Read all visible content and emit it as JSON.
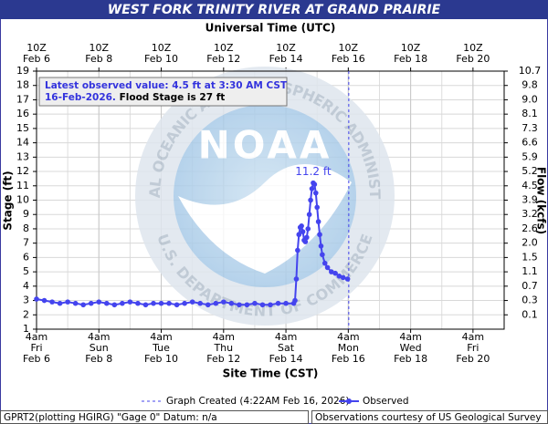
{
  "chart_data": {
    "type": "line",
    "title": "WEST FORK TRINITY RIVER AT GRAND PRAIRIE",
    "x_label": "Site Time (CST)",
    "x2_label": "Universal Time (UTC)",
    "y_label": "Stage (ft)",
    "y2_label": "Flow (kcfs)",
    "xlim": [
      "2026-02-06T04:00",
      "2026-02-21T04:00"
    ],
    "xticks": [
      {
        "value": "2026-02-06T04:00",
        "label": [
          "4am",
          "Fri",
          "Feb 6"
        ]
      },
      {
        "value": "2026-02-08T04:00",
        "label": [
          "4am",
          "Sun",
          "Feb 8"
        ]
      },
      {
        "value": "2026-02-10T04:00",
        "label": [
          "4am",
          "Tue",
          "Feb 10"
        ]
      },
      {
        "value": "2026-02-12T04:00",
        "label": [
          "4am",
          "Thu",
          "Feb 12"
        ]
      },
      {
        "value": "2026-02-14T04:00",
        "label": [
          "4am",
          "Sat",
          "Feb 14"
        ]
      },
      {
        "value": "2026-02-16T04:00",
        "label": [
          "4am",
          "Mon",
          "Feb 16"
        ]
      },
      {
        "value": "2026-02-18T04:00",
        "label": [
          "4am",
          "Wed",
          "Feb 18"
        ]
      },
      {
        "value": "2026-02-20T04:00",
        "label": [
          "4am",
          "Fri",
          "Feb 20"
        ]
      }
    ],
    "x2ticks": [
      {
        "value": "2026-02-06T04:00",
        "label": [
          "10Z",
          "Feb 6"
        ]
      },
      {
        "value": "2026-02-08T04:00",
        "label": [
          "10Z",
          "Feb 8"
        ]
      },
      {
        "value": "2026-02-10T04:00",
        "label": [
          "10Z",
          "Feb 10"
        ]
      },
      {
        "value": "2026-02-12T04:00",
        "label": [
          "10Z",
          "Feb 12"
        ]
      },
      {
        "value": "2026-02-14T04:00",
        "label": [
          "10Z",
          "Feb 14"
        ]
      },
      {
        "value": "2026-02-16T04:00",
        "label": [
          "10Z",
          "Feb 16"
        ]
      },
      {
        "value": "2026-02-18T04:00",
        "label": [
          "10Z",
          "Feb 18"
        ]
      },
      {
        "value": "2026-02-20T04:00",
        "label": [
          "10Z",
          "Feb 20"
        ]
      }
    ],
    "ylim": [
      1,
      19
    ],
    "yticks": [
      1,
      2,
      3,
      4,
      5,
      6,
      7,
      8,
      9,
      10,
      11,
      12,
      13,
      14,
      15,
      16,
      17,
      18,
      19
    ],
    "y2ticks": [
      0.1,
      0.3,
      0.7,
      1.1,
      1.5,
      {
        "value": 2,
        "label": "2.0"
      },
      2.6,
      3.2,
      3.9,
      4.5,
      5.2,
      5.9,
      6.6,
      7.3,
      8.1,
      {
        "value": 9,
        "label": "9.0"
      },
      9.8,
      10.7
    ],
    "grid": true,
    "series": [
      {
        "name": "Observed",
        "color": "#4444ee",
        "x": [
          "2026-02-06T04:00",
          "2026-02-06T10:00",
          "2026-02-06T16:00",
          "2026-02-06T22:00",
          "2026-02-07T04:00",
          "2026-02-07T10:00",
          "2026-02-07T16:00",
          "2026-02-07T22:00",
          "2026-02-08T04:00",
          "2026-02-08T10:00",
          "2026-02-08T16:00",
          "2026-02-08T22:00",
          "2026-02-09T04:00",
          "2026-02-09T10:00",
          "2026-02-09T16:00",
          "2026-02-09T22:00",
          "2026-02-10T04:00",
          "2026-02-10T10:00",
          "2026-02-10T16:00",
          "2026-02-10T22:00",
          "2026-02-11T04:00",
          "2026-02-11T10:00",
          "2026-02-11T16:00",
          "2026-02-11T22:00",
          "2026-02-12T04:00",
          "2026-02-12T10:00",
          "2026-02-12T16:00",
          "2026-02-12T22:00",
          "2026-02-13T04:00",
          "2026-02-13T10:00",
          "2026-02-13T16:00",
          "2026-02-13T22:00",
          "2026-02-14T04:00",
          "2026-02-14T10:00",
          "2026-02-14T11:00",
          "2026-02-14T12:00",
          "2026-02-14T13:00",
          "2026-02-14T14:00",
          "2026-02-14T15:00",
          "2026-02-14T16:00",
          "2026-02-14T17:00",
          "2026-02-14T18:00",
          "2026-02-14T19:00",
          "2026-02-14T20:00",
          "2026-02-14T21:00",
          "2026-02-14T22:00",
          "2026-02-14T23:00",
          "2026-02-15T00:00",
          "2026-02-15T01:00",
          "2026-02-15T02:00",
          "2026-02-15T03:00",
          "2026-02-15T04:00",
          "2026-02-15T05:00",
          "2026-02-15T06:00",
          "2026-02-15T07:00",
          "2026-02-15T08:00",
          "2026-02-15T10:00",
          "2026-02-15T12:00",
          "2026-02-15T15:00",
          "2026-02-15T18:00",
          "2026-02-15T21:00",
          "2026-02-16T00:00",
          "2026-02-16T03:30"
        ],
        "values": [
          3.1,
          3.0,
          2.9,
          2.8,
          2.9,
          2.8,
          2.7,
          2.8,
          2.9,
          2.8,
          2.7,
          2.8,
          2.9,
          2.8,
          2.7,
          2.8,
          2.8,
          2.8,
          2.7,
          2.8,
          2.9,
          2.8,
          2.7,
          2.8,
          2.9,
          2.8,
          2.7,
          2.7,
          2.8,
          2.7,
          2.7,
          2.8,
          2.8,
          2.8,
          3.0,
          4.5,
          6.5,
          7.6,
          8.1,
          8.2,
          7.8,
          7.2,
          7.1,
          7.4,
          8.0,
          9.0,
          10.0,
          10.8,
          11.2,
          11.1,
          10.5,
          9.5,
          8.5,
          7.6,
          6.8,
          6.2,
          5.6,
          5.3,
          5.0,
          4.9,
          4.7,
          4.6,
          4.5
        ]
      }
    ],
    "annotations": [
      {
        "text": "11.2 ft",
        "x": "2026-02-15T01:00",
        "y": 11.2
      }
    ],
    "created": {
      "label": "Graph Created (4:22AM Feb 16, 2026)",
      "x": "2026-02-16T04:22"
    },
    "info": {
      "line1": "Latest observed value: 4.5 ft at 3:30 AM CST",
      "line2_date": "16-Feb-2026.",
      "line2_flood": "Flood Stage is 27 ft"
    },
    "watermark": {
      "name": "NOAA",
      "ring_top": "NATIONAL OCEANIC AND ATMOSPHERIC ADMINISTRATION",
      "ring_bottom": "U.S. DEPARTMENT OF COMMERCE"
    },
    "footer_left": "GPRT2(plotting HGIRG) \"Gage 0\" Datum: n/a",
    "footer_right": "Observations courtesy of US Geological Survey"
  }
}
